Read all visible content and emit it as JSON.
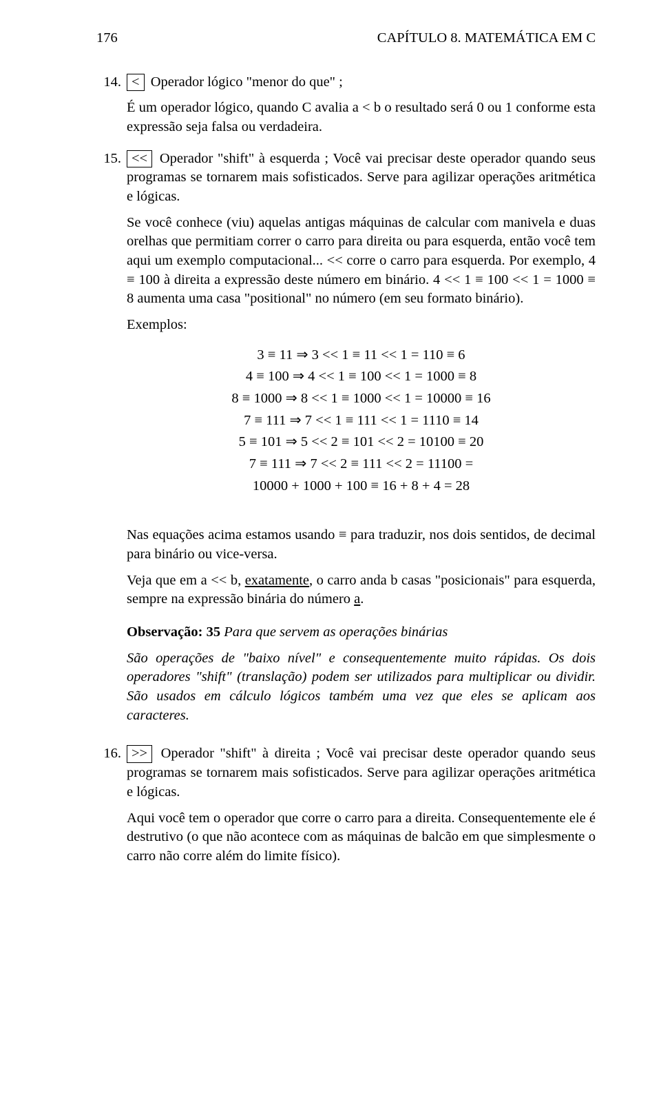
{
  "header": {
    "page_number": "176",
    "chapter_title": "CAPÍTULO 8. MATEMÁTICA EM C"
  },
  "items": {
    "item14": {
      "num": "14.",
      "boxed": "<",
      "intro": " Operador lógico \"menor do que\" ;",
      "p1": "É um operador lógico, quando C avalia a < b o resultado será 0 ou 1 conforme esta expressão seja falsa ou verdadeira."
    },
    "item15": {
      "num": "15.",
      "boxed": "<<",
      "intro": " Operador \"shift\" à  esquerda ; Você vai precisar deste operador quando seus programas se tornarem mais sofisticados. Serve para agilizar operações aritmética e lógicas.",
      "p2": "Se você conhece (viu) aquelas antigas máquinas de calcular com manivela e duas orelhas que permitiam correr o carro para direita ou para esquerda, então você tem aqui um exemplo computacional... << corre o carro para esquerda. Por exemplo, 4 ≡ 100 à direita a expressão deste número em binário. 4 << 1 ≡ 100 << 1 = 1000 ≡ 8 aumenta uma casa \"positional\" no número (em seu formato binário).",
      "p3": "Exemplos:",
      "eq1": "3 ≡ 11   ⇒   3 << 1 ≡ 11 << 1 = 110 ≡ 6",
      "eq2": "4 ≡ 100   ⇒   4 << 1 ≡ 100 << 1 = 1000 ≡ 8",
      "eq3": "8 ≡ 1000   ⇒   8 << 1 ≡ 1000 << 1 = 10000 ≡ 16",
      "eq4": "7 ≡ 111   ⇒   7 << 1 ≡ 111 << 1 = 1110 ≡ 14",
      "eq5": "5 ≡ 101   ⇒   5 << 2 ≡ 101 << 2 = 10100 ≡ 20",
      "eq6": "7 ≡ 111   ⇒   7 << 2 ≡ 111 << 2 = 11100 =",
      "eq7": "10000 + 1000 + 100 ≡ 16 + 8 + 4 = 28",
      "p4": "Nas equações acima estamos usando ≡ para traduzir, nos dois sentidos, de decimal para binário ou vice-versa.",
      "p5a": "Veja que em a << b, ",
      "p5u": "exatamente",
      "p5b": ", o carro anda b casas \"posicionais\" para esquerda, sempre na expressão binária do número ",
      "p5u2": "a",
      "p5c": ".",
      "obs_label": "Observação:   35",
      "obs_title": " Para que servem as operações binárias",
      "obs_p1": "São operações de \"baixo nível\" e consequentemente muito rápidas. Os dois operadores \"shift\" (translação) podem ser utilizados para multiplicar ou dividir. São usados em cálculo lógicos também uma vez que eles se aplicam aos caracteres."
    },
    "item16": {
      "num": "16.",
      "boxed": ">>",
      "intro": " Operador \"shift\" à direita ; Você vai precisar deste operador quando seus programas se tornarem mais sofisticados. Serve para agilizar operações aritmética e lógicas.",
      "p2": "Aqui você tem o operador que corre o carro para a direita. Consequentemente ele é destrutivo (o que não acontece com as máquinas de balcão em que simplesmente o carro não corre além do limite físico)."
    }
  }
}
